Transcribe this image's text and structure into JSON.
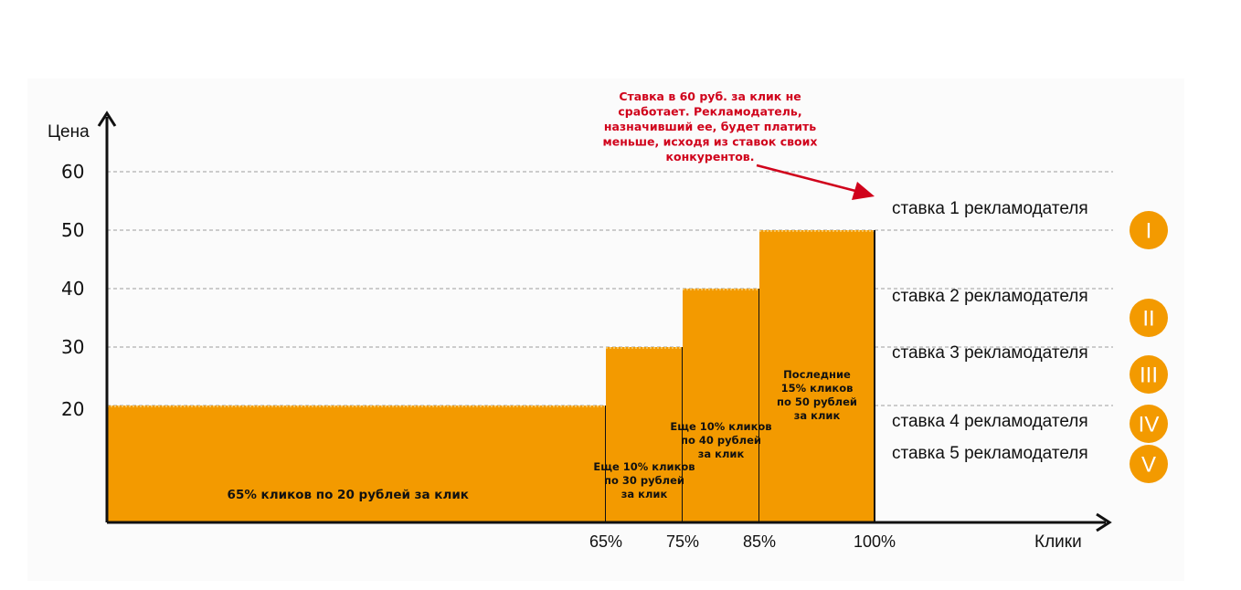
{
  "chart_data": {
    "type": "bar",
    "xlabel": "Клики",
    "ylabel": "Цена",
    "ylim": [
      0,
      60
    ],
    "xlim": [
      0,
      100
    ],
    "y_ticks": [
      {
        "value": 20,
        "label": "20"
      },
      {
        "value": 30,
        "label": "30"
      },
      {
        "value": 40,
        "label": "40"
      },
      {
        "value": 50,
        "label": "50"
      },
      {
        "value": 60,
        "label": "60"
      }
    ],
    "x_ticks": [
      {
        "value": 65,
        "label": "65%"
      },
      {
        "value": 75,
        "label": "75%"
      },
      {
        "value": 85,
        "label": "85%"
      },
      {
        "value": 100,
        "label": "100%"
      }
    ],
    "bars": [
      {
        "x_start": 0,
        "x_end": 65,
        "value": 20,
        "label": [
          "65% кликов по 20 рублей за клик"
        ]
      },
      {
        "x_start": 65,
        "x_end": 75,
        "value": 30,
        "label": [
          "Еще 10% кликов",
          "по 30 рублей",
          "за клик"
        ]
      },
      {
        "x_start": 75,
        "x_end": 85,
        "value": 40,
        "label": [
          "Еще 10% кликов",
          "по 40 рублей",
          "за клик"
        ]
      },
      {
        "x_start": 85,
        "x_end": 100,
        "value": 50,
        "label": [
          "Последние",
          "15% кликов",
          "по 50 рублей",
          "за клик"
        ]
      }
    ],
    "bids": [
      {
        "value": 60,
        "label": "ставка 1 рекламодателя",
        "roman": "I"
      },
      {
        "value": 50,
        "label": "ставка 2 рекламодателя",
        "roman": "II"
      },
      {
        "value": 40,
        "label": "ставка 3 рекламодателя",
        "roman": "III"
      },
      {
        "value": 30,
        "label": "ставка 4 рекламодателя",
        "roman": "IV"
      },
      {
        "value": 20,
        "label": "ставка 5 рекламодателя",
        "roman": "V"
      }
    ],
    "annotation": [
      "Ставка в 60 руб. за клик не",
      "сработает. Рекламодатель,",
      "назначивший ее, будет платить",
      "меньше, исходя из ставок своих",
      "конкурентов."
    ],
    "colors": {
      "bar": "#f39a00",
      "circle": "#f39a00",
      "annotation": "#d0021b",
      "gridline": "#bdbdbd",
      "axis": "#111111"
    },
    "grid": "dashed horizontal at bid levels"
  }
}
